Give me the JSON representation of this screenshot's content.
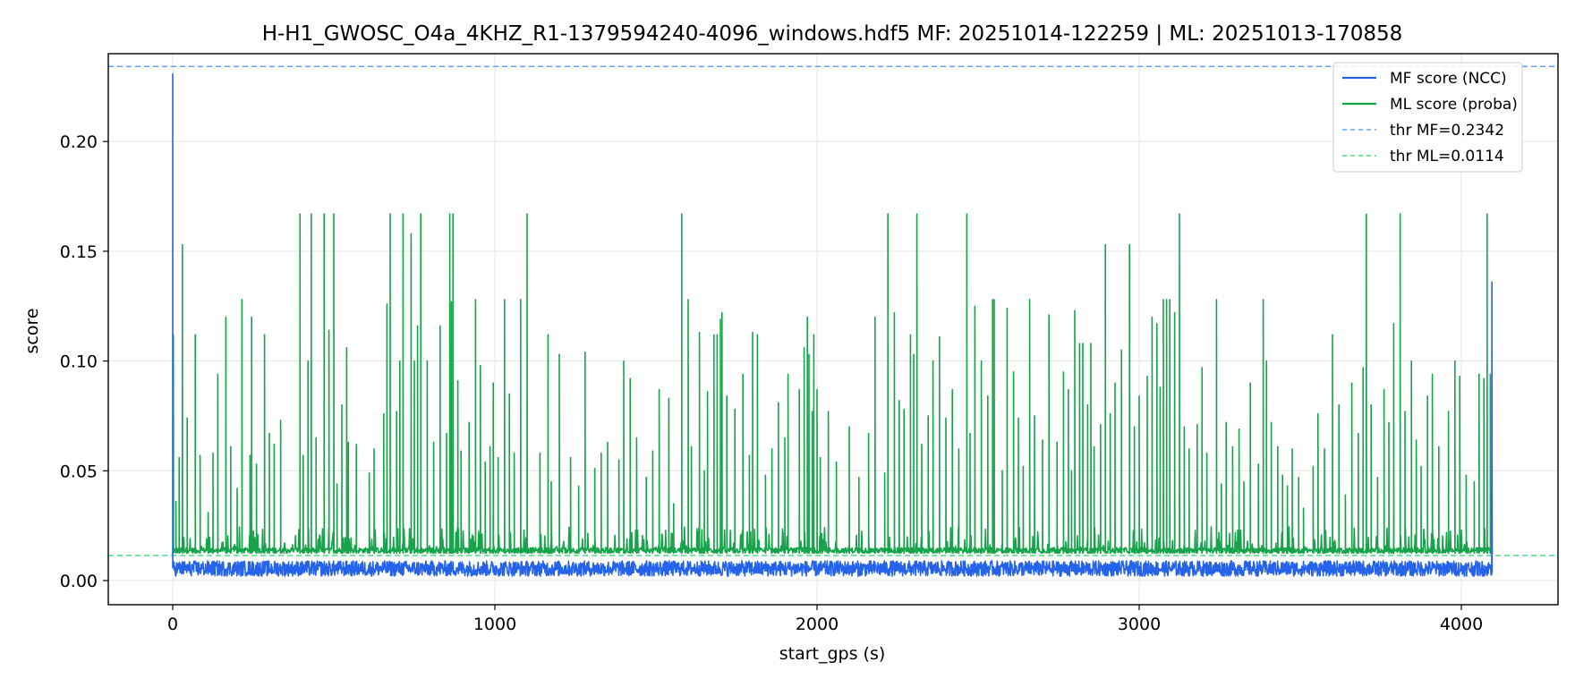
{
  "chart_data": {
    "type": "line",
    "title": "H-H1_GWOSC_O4a_4KHZ_R1-1379594240-4096_windows.hdf5  MF: 20251014-122259 | ML: 20251013-170858",
    "xlabel": "start_gps (s)",
    "ylabel": "score",
    "xlim": [
      -200,
      4300
    ],
    "ylim": [
      -0.011,
      0.24
    ],
    "x_ticks": [
      0,
      1000,
      2000,
      3000,
      4000
    ],
    "x_tick_labels": [
      "0",
      "1000",
      "2000",
      "3000",
      "4000"
    ],
    "y_ticks": [
      0.0,
      0.05,
      0.1,
      0.15,
      0.2
    ],
    "y_tick_labels": [
      "0.00",
      "0.05",
      "0.10",
      "0.15",
      "0.20"
    ],
    "grid": true,
    "legend_position": "top-right",
    "series": [
      {
        "name": "MF score (NCC)",
        "color": "#2563eb",
        "style": "solid",
        "baseline": 0.005,
        "noise_range": [
          0.001,
          0.011
        ],
        "spikes": [
          [
            0,
            0.231
          ],
          [
            4095,
            0.136
          ]
        ]
      },
      {
        "name": "ML score (proba)",
        "color": "#16a34a",
        "style": "solid",
        "baseline": 0.0125,
        "peaks": [
          [
            2,
            0.112
          ],
          [
            10,
            0.036
          ],
          [
            20,
            0.056
          ],
          [
            30,
            0.153
          ],
          [
            45,
            0.074
          ],
          [
            70,
            0.112
          ],
          [
            85,
            0.057
          ],
          [
            110,
            0.031
          ],
          [
            125,
            0.058
          ],
          [
            140,
            0.094
          ],
          [
            165,
            0.12
          ],
          [
            180,
            0.061
          ],
          [
            200,
            0.042
          ],
          [
            215,
            0.128
          ],
          [
            240,
            0.057
          ],
          [
            245,
            0.12
          ],
          [
            260,
            0.053
          ],
          [
            285,
            0.112
          ],
          [
            300,
            0.067
          ],
          [
            315,
            0.062
          ],
          [
            335,
            0.073
          ],
          [
            395,
            0.167
          ],
          [
            405,
            0.057
          ],
          [
            420,
            0.1
          ],
          [
            430,
            0.167
          ],
          [
            445,
            0.065
          ],
          [
            470,
            0.167
          ],
          [
            485,
            0.114
          ],
          [
            500,
            0.167
          ],
          [
            510,
            0.044
          ],
          [
            525,
            0.08
          ],
          [
            540,
            0.106
          ],
          [
            545,
            0.063
          ],
          [
            570,
            0.062
          ],
          [
            610,
            0.049
          ],
          [
            625,
            0.06
          ],
          [
            655,
            0.076
          ],
          [
            665,
            0.126
          ],
          [
            675,
            0.167
          ],
          [
            695,
            0.077
          ],
          [
            705,
            0.1
          ],
          [
            715,
            0.167
          ],
          [
            740,
            0.158
          ],
          [
            750,
            0.1
          ],
          [
            760,
            0.116
          ],
          [
            770,
            0.167
          ],
          [
            790,
            0.1
          ],
          [
            810,
            0.063
          ],
          [
            830,
            0.116
          ],
          [
            850,
            0.067
          ],
          [
            860,
            0.167
          ],
          [
            865,
            0.127
          ],
          [
            870,
            0.167
          ],
          [
            885,
            0.091
          ],
          [
            895,
            0.059
          ],
          [
            920,
            0.072
          ],
          [
            940,
            0.128
          ],
          [
            955,
            0.098
          ],
          [
            970,
            0.054
          ],
          [
            985,
            0.061
          ],
          [
            995,
            0.09
          ],
          [
            1010,
            0.056
          ],
          [
            1030,
            0.128
          ],
          [
            1045,
            0.085
          ],
          [
            1060,
            0.058
          ],
          [
            1080,
            0.128
          ],
          [
            1100,
            0.167
          ],
          [
            1140,
            0.058
          ],
          [
            1165,
            0.112
          ],
          [
            1175,
            0.045
          ],
          [
            1200,
            0.103
          ],
          [
            1235,
            0.056
          ],
          [
            1260,
            0.043
          ],
          [
            1280,
            0.104
          ],
          [
            1310,
            0.051
          ],
          [
            1330,
            0.058
          ],
          [
            1350,
            0.063
          ],
          [
            1385,
            0.055
          ],
          [
            1400,
            0.1
          ],
          [
            1420,
            0.092
          ],
          [
            1440,
            0.065
          ],
          [
            1470,
            0.047
          ],
          [
            1490,
            0.059
          ],
          [
            1510,
            0.087
          ],
          [
            1540,
            0.083
          ],
          [
            1555,
            0.035
          ],
          [
            1580,
            0.167
          ],
          [
            1600,
            0.128
          ],
          [
            1610,
            0.061
          ],
          [
            1635,
            0.113
          ],
          [
            1650,
            0.05
          ],
          [
            1660,
            0.086
          ],
          [
            1680,
            0.112
          ],
          [
            1690,
            0.112
          ],
          [
            1700,
            0.119
          ],
          [
            1705,
            0.122
          ],
          [
            1720,
            0.084
          ],
          [
            1745,
            0.078
          ],
          [
            1770,
            0.094
          ],
          [
            1790,
            0.057
          ],
          [
            1800,
            0.113
          ],
          [
            1815,
            0.112
          ],
          [
            1840,
            0.048
          ],
          [
            1860,
            0.06
          ],
          [
            1880,
            0.081
          ],
          [
            1900,
            0.065
          ],
          [
            1910,
            0.094
          ],
          [
            1945,
            0.087
          ],
          [
            1960,
            0.106
          ],
          [
            1970,
            0.12
          ],
          [
            1975,
            0.103
          ],
          [
            1985,
            0.077
          ],
          [
            1990,
            0.112
          ],
          [
            2000,
            0.087
          ],
          [
            2010,
            0.056
          ],
          [
            2035,
            0.077
          ],
          [
            2060,
            0.054
          ],
          [
            2100,
            0.07
          ],
          [
            2130,
            0.047
          ],
          [
            2160,
            0.067
          ],
          [
            2180,
            0.12
          ],
          [
            2210,
            0.049
          ],
          [
            2220,
            0.167
          ],
          [
            2240,
            0.122
          ],
          [
            2255,
            0.082
          ],
          [
            2270,
            0.078
          ],
          [
            2290,
            0.112
          ],
          [
            2300,
            0.103
          ],
          [
            2310,
            0.167
          ],
          [
            2325,
            0.062
          ],
          [
            2345,
            0.075
          ],
          [
            2360,
            0.1
          ],
          [
            2380,
            0.111
          ],
          [
            2400,
            0.074
          ],
          [
            2420,
            0.087
          ],
          [
            2440,
            0.06
          ],
          [
            2465,
            0.167
          ],
          [
            2475,
            0.067
          ],
          [
            2490,
            0.125
          ],
          [
            2510,
            0.1
          ],
          [
            2530,
            0.084
          ],
          [
            2545,
            0.128
          ],
          [
            2550,
            0.128
          ],
          [
            2575,
            0.05
          ],
          [
            2590,
            0.124
          ],
          [
            2610,
            0.095
          ],
          [
            2625,
            0.074
          ],
          [
            2640,
            0.052
          ],
          [
            2660,
            0.128
          ],
          [
            2675,
            0.075
          ],
          [
            2700,
            0.064
          ],
          [
            2720,
            0.121
          ],
          [
            2745,
            0.063
          ],
          [
            2765,
            0.095
          ],
          [
            2780,
            0.087
          ],
          [
            2790,
            0.05
          ],
          [
            2800,
            0.123
          ],
          [
            2815,
            0.108
          ],
          [
            2825,
            0.108
          ],
          [
            2840,
            0.08
          ],
          [
            2850,
            0.108
          ],
          [
            2860,
            0.061
          ],
          [
            2880,
            0.071
          ],
          [
            2895,
            0.153
          ],
          [
            2910,
            0.076
          ],
          [
            2925,
            0.09
          ],
          [
            2945,
            0.105
          ],
          [
            2970,
            0.153
          ],
          [
            2985,
            0.07
          ],
          [
            3000,
            0.084
          ],
          [
            3025,
            0.093
          ],
          [
            3040,
            0.12
          ],
          [
            3055,
            0.117
          ],
          [
            3065,
            0.088
          ],
          [
            3075,
            0.128
          ],
          [
            3085,
            0.128
          ],
          [
            3095,
            0.128
          ],
          [
            3110,
            0.122
          ],
          [
            3125,
            0.167
          ],
          [
            3140,
            0.07
          ],
          [
            3155,
            0.06
          ],
          [
            3180,
            0.071
          ],
          [
            3195,
            0.097
          ],
          [
            3210,
            0.058
          ],
          [
            3240,
            0.128
          ],
          [
            3255,
            0.044
          ],
          [
            3270,
            0.072
          ],
          [
            3290,
            0.061
          ],
          [
            3310,
            0.069
          ],
          [
            3325,
            0.045
          ],
          [
            3345,
            0.09
          ],
          [
            3370,
            0.053
          ],
          [
            3385,
            0.128
          ],
          [
            3395,
            0.1
          ],
          [
            3410,
            0.072
          ],
          [
            3430,
            0.061
          ],
          [
            3445,
            0.048
          ],
          [
            3460,
            0.043
          ],
          [
            3475,
            0.06
          ],
          [
            3495,
            0.047
          ],
          [
            3510,
            0.033
          ],
          [
            3540,
            0.052
          ],
          [
            3555,
            0.076
          ],
          [
            3575,
            0.06
          ],
          [
            3600,
            0.112
          ],
          [
            3620,
            0.08
          ],
          [
            3640,
            0.039
          ],
          [
            3660,
            0.09
          ],
          [
            3680,
            0.067
          ],
          [
            3695,
            0.097
          ],
          [
            3705,
            0.167
          ],
          [
            3720,
            0.08
          ],
          [
            3740,
            0.047
          ],
          [
            3760,
            0.087
          ],
          [
            3775,
            0.072
          ],
          [
            3790,
            0.117
          ],
          [
            3810,
            0.167
          ],
          [
            3825,
            0.077
          ],
          [
            3845,
            0.1
          ],
          [
            3860,
            0.064
          ],
          [
            3875,
            0.052
          ],
          [
            3895,
            0.084
          ],
          [
            3910,
            0.094
          ],
          [
            3930,
            0.061
          ],
          [
            3960,
            0.077
          ],
          [
            3980,
            0.1
          ],
          [
            3995,
            0.093
          ],
          [
            4015,
            0.048
          ],
          [
            4040,
            0.045
          ],
          [
            4055,
            0.094
          ],
          [
            4070,
            0.092
          ],
          [
            4080,
            0.167
          ],
          [
            4090,
            0.094
          ],
          [
            4095,
            0.04
          ]
        ]
      }
    ],
    "thresholds": [
      {
        "name": "thr MF=0.2342",
        "value": 0.2342,
        "color": "#60a5fa",
        "style": "dashed"
      },
      {
        "name": "thr ML=0.0114",
        "value": 0.0114,
        "color": "#4ade80",
        "style": "dashed"
      }
    ]
  }
}
